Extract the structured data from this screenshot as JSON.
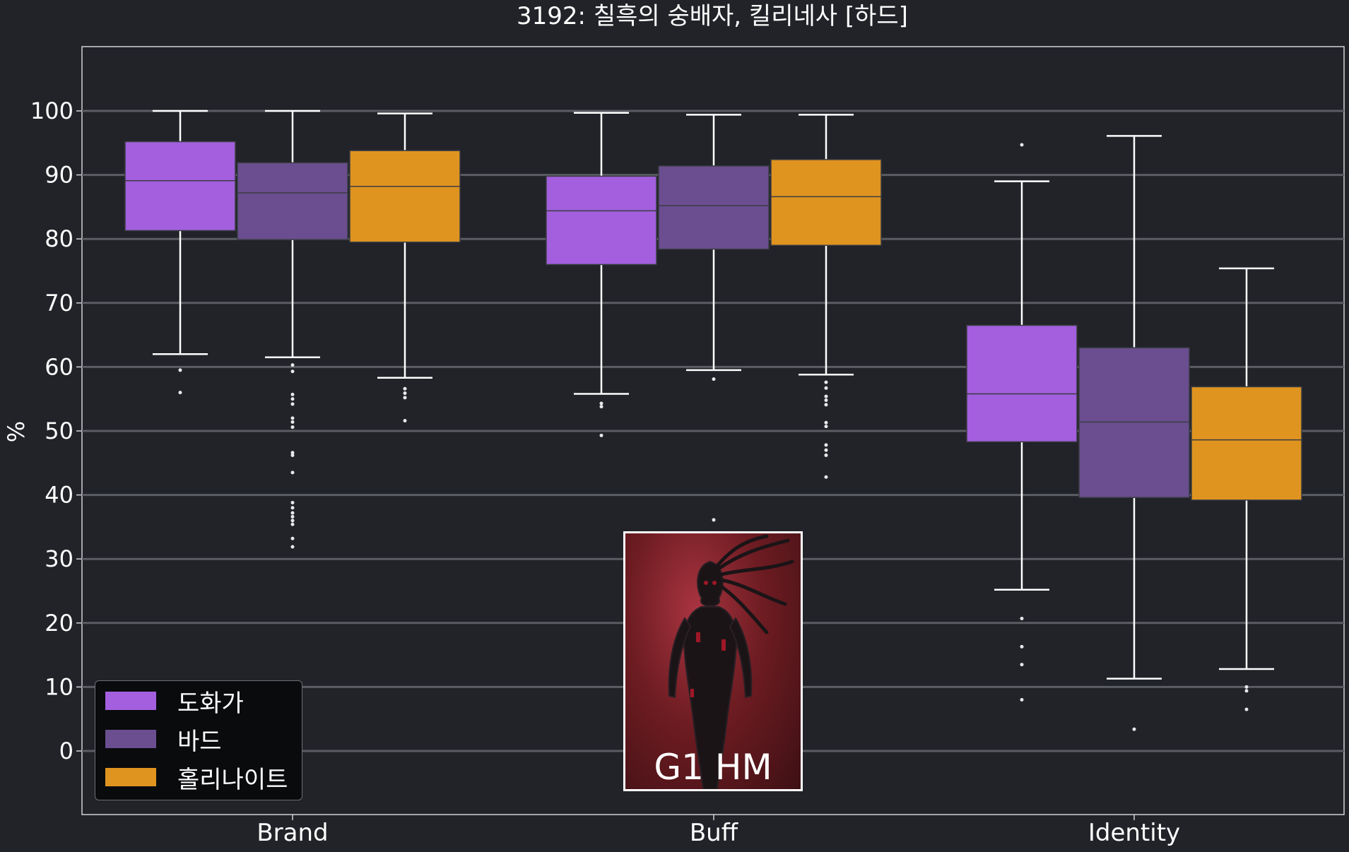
{
  "chart_data": {
    "type": "box",
    "title": "3192: 칠흑의 숭배자, 킬리네사 [하드]",
    "ylabel": "%",
    "xlabel": "",
    "categories": [
      "Brand",
      "Buff",
      "Identity"
    ],
    "ylim": [
      -10,
      110
    ],
    "yticks": [
      0,
      10,
      20,
      30,
      40,
      50,
      60,
      70,
      80,
      90,
      100
    ],
    "grid": "horizontal",
    "legend_position": "lower-left",
    "series": [
      {
        "name": "도화가",
        "color": "#a35fde",
        "boxes": [
          {
            "whisker_low": 62,
            "q1": 81.3,
            "median": 89.1,
            "q3": 95.2,
            "whisker_high": 100,
            "outliers": [
              59.5,
              56
            ]
          },
          {
            "whisker_low": 55.8,
            "q1": 76,
            "median": 84.4,
            "q3": 89.8,
            "whisker_high": 99.7,
            "outliers": [
              54.3,
              53.8,
              49.3
            ]
          },
          {
            "whisker_low": 25.2,
            "q1": 48.3,
            "median": 55.8,
            "q3": 66.5,
            "whisker_high": 89,
            "outliers": [
              94.7,
              20.7,
              16.3,
              13.5,
              8
            ]
          }
        ]
      },
      {
        "name": "바드",
        "color": "#6a4e90",
        "boxes": [
          {
            "whisker_low": 61.5,
            "q1": 79.9,
            "median": 87.2,
            "q3": 91.9,
            "whisker_high": 100,
            "outliers": [
              60.3,
              59.3,
              55.7,
              55,
              54.2,
              52,
              51.4,
              50.6,
              46.6,
              46.2,
              43.5,
              38.8,
              38,
              37.2,
              36.6,
              36,
              35.4,
              33.2,
              31.9
            ]
          },
          {
            "whisker_low": 59.5,
            "q1": 78.4,
            "median": 85.2,
            "q3": 91.4,
            "whisker_high": 99.4,
            "outliers": [
              58.1,
              36.1
            ]
          },
          {
            "whisker_low": 11.3,
            "q1": 39.6,
            "median": 51.4,
            "q3": 63,
            "whisker_high": 96.1,
            "outliers": [
              3.4
            ]
          }
        ]
      },
      {
        "name": "홀리나이트",
        "color": "#e09420",
        "boxes": [
          {
            "whisker_low": 58.3,
            "q1": 79.5,
            "median": 88.2,
            "q3": 93.8,
            "whisker_high": 99.6,
            "outliers": [
              56.6,
              55.9,
              55.2,
              51.6
            ]
          },
          {
            "whisker_low": 58.8,
            "q1": 79,
            "median": 86.6,
            "q3": 92.4,
            "whisker_high": 99.4,
            "outliers": [
              57.6,
              56.7,
              55.4,
              54.8,
              54.1,
              51.3,
              50.7,
              47.8,
              47,
              46.2,
              42.8
            ]
          },
          {
            "whisker_low": 12.8,
            "q1": 39.2,
            "median": 48.6,
            "q3": 56.9,
            "whisker_high": 75.4,
            "outliers": [
              10,
              9.4,
              6.5
            ]
          }
        ]
      }
    ]
  },
  "inset": {
    "caption": "G1 HM",
    "image": "boss-portrait"
  }
}
